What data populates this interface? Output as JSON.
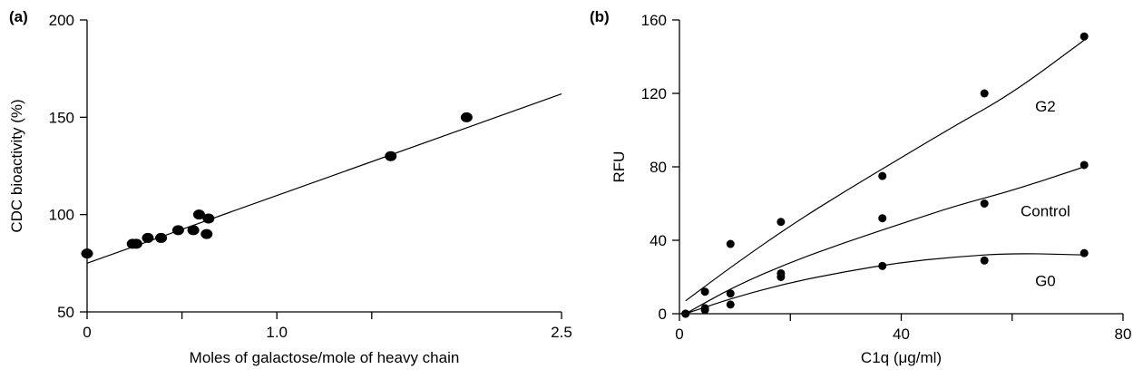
{
  "chart_data": [
    {
      "type": "scatter",
      "panel_label": "(a)",
      "xlabel": "Moles of galactose/mole of heavy chain",
      "ylabel": "CDC bioactivity (%)",
      "xlim": [
        0,
        2.5
      ],
      "ylim": [
        50,
        200
      ],
      "x_ticks": [
        0,
        0.5,
        1.0,
        1.5,
        2.5
      ],
      "x_tick_labels": [
        "0",
        "",
        "1.0",
        "",
        "2.5"
      ],
      "y_ticks": [
        50,
        100,
        150,
        200
      ],
      "y_tick_labels": [
        "50",
        "100",
        "150",
        "200"
      ],
      "grid": false,
      "series": [
        {
          "points": [
            [
              0.0,
              80
            ],
            [
              0.24,
              85
            ],
            [
              0.26,
              85
            ],
            [
              0.32,
              88
            ],
            [
              0.39,
              88
            ],
            [
              0.48,
              92
            ],
            [
              0.56,
              92
            ],
            [
              0.59,
              100
            ],
            [
              0.63,
              90
            ],
            [
              0.64,
              98
            ],
            [
              1.6,
              130
            ],
            [
              2.0,
              150
            ]
          ]
        }
      ],
      "fit_line": {
        "x": [
          0,
          2.5
        ],
        "y": [
          75,
          162
        ]
      }
    },
    {
      "type": "scatter",
      "panel_label": "(b)",
      "xlabel": "C1q (μg/ml)",
      "ylabel": "RFU",
      "xlim": [
        0,
        80
      ],
      "ylim": [
        0,
        160
      ],
      "x_ticks": [
        0,
        20,
        40,
        60,
        80
      ],
      "x_tick_labels": [
        "0",
        "",
        "40",
        "",
        "80"
      ],
      "y_ticks": [
        0,
        40,
        80,
        120,
        160
      ],
      "y_tick_labels": [
        "0",
        "40",
        "80",
        "120",
        "160"
      ],
      "grid": false,
      "series": [
        {
          "name": "G2",
          "label_at": [
            66,
            113
          ],
          "points": [
            [
              1.1,
              0
            ],
            [
              4.6,
              12
            ],
            [
              9.2,
              38
            ],
            [
              18.3,
              50
            ],
            [
              36.6,
              75
            ],
            [
              55,
              120
            ],
            [
              73,
              151
            ]
          ],
          "curve": {
            "x": [
              1.1,
              10,
              20,
              30,
              40,
              50,
              60,
              73
            ],
            "y": [
              7,
              27,
              48,
              67,
              85,
              103,
              120,
              149
            ]
          }
        },
        {
          "name": "Control",
          "label_at": [
            66,
            56
          ],
          "points": [
            [
              1.1,
              0
            ],
            [
              4.6,
              2
            ],
            [
              9.2,
              11
            ],
            [
              18.3,
              22
            ],
            [
              36.6,
              52
            ],
            [
              55,
              60
            ],
            [
              73,
              81
            ]
          ],
          "curve": {
            "x": [
              1.1,
              10,
              20,
              30,
              40,
              50,
              60,
              73
            ],
            "y": [
              0,
              15,
              28,
              39,
              49,
              59,
              67,
              80
            ]
          }
        },
        {
          "name": "G0",
          "label_at": [
            66,
            18
          ],
          "points": [
            [
              1.1,
              0
            ],
            [
              4.6,
              3
            ],
            [
              9.2,
              5
            ],
            [
              18.3,
              20
            ],
            [
              36.6,
              26
            ],
            [
              55,
              29
            ],
            [
              73,
              33
            ]
          ],
          "curve": {
            "x": [
              1.1,
              10,
              20,
              30,
              40,
              50,
              60,
              73
            ],
            "y": [
              0,
              9,
              17,
              23,
              28,
              31,
              33,
              32
            ]
          }
        }
      ]
    }
  ]
}
